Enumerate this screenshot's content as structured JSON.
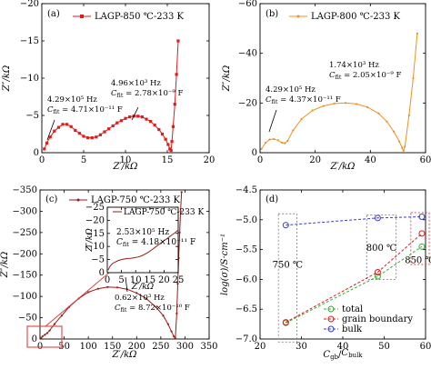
{
  "colors": {
    "red": "#e21a1a",
    "orange": "#f0901f",
    "darkred": "#9a1a14",
    "green": "#3aa83a",
    "blue": "#3a3ad8",
    "box": "#e24040"
  },
  "chart_data": [
    {
      "panel": "(a)",
      "type": "scatter",
      "legend": "LAGP-850 ℃-233 K",
      "xlabel": "Z′/kΩ",
      "ylabel": "Z″/kΩ",
      "xlim": [
        0,
        20
      ],
      "ylim": [
        0,
        -20
      ],
      "xticks": [
        "0",
        "5",
        "10",
        "15",
        "20"
      ],
      "yticks": [
        "0",
        "−5",
        "−10",
        "−15",
        "−20"
      ],
      "annotation_left": [
        "4.29×10⁵ Hz",
        "C",
        "fit",
        " = 4.71×10⁻¹¹ F"
      ],
      "annotation_right": [
        "4.96×10³ Hz",
        "C",
        "fit",
        " = 2.78×10⁻⁹ F"
      ],
      "x": [
        0.3,
        0.6,
        1.0,
        1.5,
        2.0,
        2.5,
        3.0,
        3.5,
        4.0,
        4.5,
        5.0,
        5.5,
        6.0,
        6.5,
        7.0,
        7.5,
        8.0,
        8.5,
        9.0,
        9.5,
        10.0,
        10.5,
        11.0,
        11.5,
        12.0,
        12.5,
        13.0,
        13.5,
        14.0,
        14.4,
        14.8,
        15.1,
        15.3,
        15.45,
        15.55,
        15.7,
        15.9,
        16.1,
        16.3
      ],
      "y": [
        -0.5,
        -1.3,
        -2.1,
        -2.9,
        -3.4,
        -3.8,
        -3.8,
        -3.5,
        -3.0,
        -2.6,
        -2.2,
        -2.0,
        -2.0,
        -2.1,
        -2.4,
        -2.8,
        -3.2,
        -3.6,
        -4.0,
        -4.3,
        -4.6,
        -4.8,
        -4.9,
        -4.9,
        -4.8,
        -4.5,
        -4.2,
        -3.7,
        -3.1,
        -2.5,
        -1.8,
        -1.1,
        -0.5,
        -0.3,
        -1.5,
        -3.5,
        -6.5,
        -10.5,
        -15.0
      ]
    },
    {
      "panel": "(b)",
      "type": "scatter",
      "legend": "LAGP-800 ℃-233 K",
      "xlabel": "Z′/kΩ",
      "ylabel": "Z″/kΩ",
      "xlim": [
        0,
        60
      ],
      "ylim": [
        0,
        -60
      ],
      "xticks": [
        "0",
        "20",
        "40",
        "60"
      ],
      "yticks": [
        "0",
        "−20",
        "−40",
        "−60"
      ],
      "annotation_left": [
        "4.29×10⁵ Hz",
        "C",
        "fit",
        " = 4.37×10⁻¹¹ F"
      ],
      "annotation_right": [
        "1.74×10³ Hz",
        "C",
        "fit",
        " = 2.05×10⁻⁹ F"
      ],
      "x": [
        0.5,
        2.0,
        3.5,
        5.0,
        6.5,
        8.0,
        9.0,
        10.0,
        12.0,
        15.0,
        19.0,
        23.0,
        27.0,
        31.0,
        35.0,
        39.0,
        43.0,
        46.0,
        48.5,
        50.5,
        51.5,
        52.0,
        52.5,
        54.0,
        55.5,
        57.0
      ],
      "y": [
        -1.5,
        -4.0,
        -5.3,
        -5.5,
        -5.0,
        -4.0,
        -3.8,
        -4.8,
        -9.0,
        -13.5,
        -17.0,
        -18.8,
        -19.8,
        -20.0,
        -19.6,
        -18.3,
        -15.8,
        -12.5,
        -8.5,
        -4.5,
        -2.0,
        -0.8,
        -2.5,
        -15.0,
        -30.0,
        -48.0
      ]
    },
    {
      "panel": "(c)",
      "type": "scatter",
      "legend": "LAGP-750 ℃-233 K",
      "xlabel": "Z′/kΩ",
      "ylabel": "Z″/kΩ",
      "xlim": [
        0,
        350
      ],
      "ylim": [
        0,
        -350
      ],
      "xticks": [
        "0",
        "50",
        "100",
        "150",
        "200",
        "250",
        "300",
        "350"
      ],
      "yticks": [
        "0",
        "−50",
        "−100",
        "−150",
        "−200",
        "−250",
        "−300",
        "−350"
      ],
      "annotation": [
        "0.62×10³ Hz",
        "C",
        "fit",
        " = 8.72×10⁻¹⁰ F"
      ],
      "x": [
        2,
        5,
        10,
        15,
        20,
        30,
        45,
        60,
        80,
        100,
        120,
        140,
        160,
        180,
        200,
        220,
        240,
        255,
        265,
        272,
        277,
        280,
        283,
        285,
        287,
        289,
        291,
        293
      ],
      "y": [
        -2,
        -6,
        -10,
        -14,
        -20,
        -35,
        -55,
        -75,
        -95,
        -110,
        -118,
        -122,
        -121,
        -117,
        -108,
        -95,
        -75,
        -55,
        -35,
        -18,
        -6,
        -2,
        -60,
        -130,
        -190,
        -250,
        -300,
        -345
      ],
      "inset": {
        "legend": "LAGP-750 ℃-233 K",
        "xlabel": "Z′/kΩ",
        "ylabel": "Z″/kΩ",
        "xlim": [
          0,
          25
        ],
        "ylim": [
          0,
          -25
        ],
        "xticks": [
          "0",
          "5",
          "10",
          "15",
          "20",
          "25"
        ],
        "yticks": [
          "0",
          "−5",
          "−10",
          "−15",
          "−20",
          "−25"
        ],
        "annotation": [
          "2.53×10⁵ Hz",
          "C",
          "fit",
          " = 4.18×10⁻¹¹ F"
        ],
        "x": [
          0.3,
          1.0,
          2.0,
          3.0,
          4.0,
          5.0,
          6.0,
          7.0,
          8.0,
          9.0,
          10.0,
          11.0,
          12.0,
          13.0,
          14.0,
          15.0,
          16.0,
          17.0,
          18.0,
          19.0,
          20.0,
          21.0,
          22.0,
          23.0,
          24.0,
          25.0
        ],
        "y": [
          -1.0,
          -2.5,
          -3.6,
          -4.2,
          -4.7,
          -5.0,
          -5.2,
          -5.4,
          -5.5,
          -5.6,
          -5.8,
          -6.0,
          -6.4,
          -6.9,
          -7.5,
          -8.2,
          -9.0,
          -9.8,
          -10.6,
          -11.4,
          -12.2,
          -13.0,
          -13.8,
          -14.6,
          -15.4,
          -16.2
        ]
      }
    },
    {
      "panel": "(d)",
      "type": "line",
      "xlabel_parts": [
        "C",
        "gb",
        "/",
        "C",
        "bulk"
      ],
      "ylabel": "log(σ)/S·cm⁻¹",
      "xlim": [
        15,
        60
      ],
      "ylim": [
        -7.0,
        -4.5
      ],
      "xticks": [
        "20",
        "30",
        "40",
        "50",
        "60"
      ],
      "yticks": [
        "−7.0",
        "−6.5",
        "−6.0",
        "−5.5",
        "−5.0",
        "−4.5"
      ],
      "box_labels": [
        "750 ℃",
        "800 ℃",
        "850 ℃"
      ],
      "x": [
        22,
        47,
        59
      ],
      "series": [
        {
          "name": "total",
          "values": [
            -6.73,
            -5.95,
            -5.45
          ]
        },
        {
          "name": "grain boundary",
          "values": [
            -6.72,
            -5.88,
            -5.23
          ]
        },
        {
          "name": "bulk",
          "values": [
            -5.09,
            -4.97,
            -4.95
          ]
        }
      ]
    }
  ]
}
